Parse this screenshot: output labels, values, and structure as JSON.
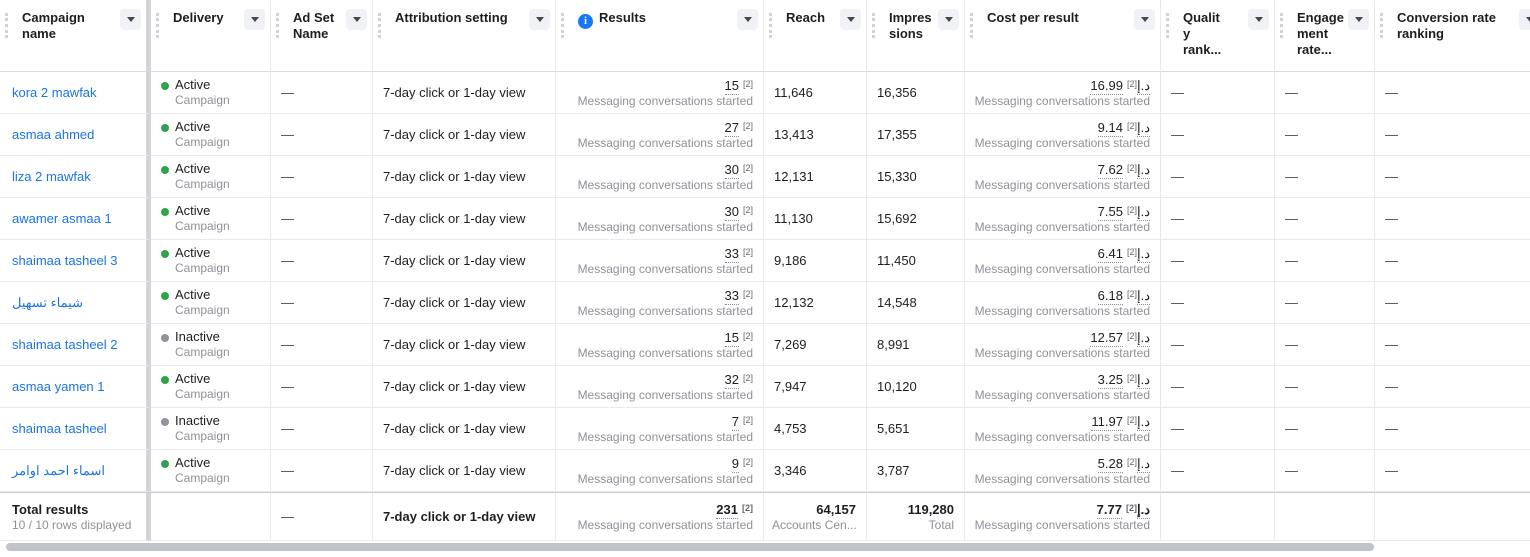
{
  "columns": [
    {
      "id": "campaign",
      "label": "Campaign name",
      "sortable": true
    },
    {
      "id": "delivery",
      "label": "Delivery",
      "sortable": true
    },
    {
      "id": "adset",
      "label": "Ad Set Name",
      "sortable": true
    },
    {
      "id": "attribution",
      "label": "Attribution setting",
      "sortable": true
    },
    {
      "id": "results",
      "label": "Results",
      "sortable": true,
      "info_icon": true
    },
    {
      "id": "reach",
      "label": "Reach",
      "sortable": true
    },
    {
      "id": "impressions",
      "label": "Impressions",
      "sortable": true
    },
    {
      "id": "cost",
      "label": "Cost per result",
      "sortable": true
    },
    {
      "id": "quality",
      "label": "Quality rank...",
      "sortable": true
    },
    {
      "id": "engagement",
      "label": "Engagement rate...",
      "sortable": true
    },
    {
      "id": "conversion",
      "label": "Conversion rate ranking",
      "sortable": true
    }
  ],
  "result_type_label": "Messaging conversations started",
  "currency_suffix": "د.إ",
  "footnote_marker": "[2]",
  "status_sublabel": "Campaign",
  "empty_value": "—",
  "rows": [
    {
      "campaign": "kora 2 mawfak",
      "status": "Active",
      "active": true,
      "adset": "—",
      "attribution": "7-day click or 1-day view",
      "results": "15",
      "reach": "11,646",
      "impressions": "16,356",
      "cost": "16.99",
      "quality": "—",
      "engagement": "—",
      "conversion": "—"
    },
    {
      "campaign": "asmaa ahmed",
      "status": "Active",
      "active": true,
      "adset": "—",
      "attribution": "7-day click or 1-day view",
      "results": "27",
      "reach": "13,413",
      "impressions": "17,355",
      "cost": "9.14",
      "quality": "—",
      "engagement": "—",
      "conversion": "—"
    },
    {
      "campaign": "liza 2 mawfak",
      "status": "Active",
      "active": true,
      "adset": "—",
      "attribution": "7-day click or 1-day view",
      "results": "30",
      "reach": "12,131",
      "impressions": "15,330",
      "cost": "7.62",
      "quality": "—",
      "engagement": "—",
      "conversion": "—"
    },
    {
      "campaign": "awamer asmaa 1",
      "status": "Active",
      "active": true,
      "adset": "—",
      "attribution": "7-day click or 1-day view",
      "results": "30",
      "reach": "11,130",
      "impressions": "15,692",
      "cost": "7.55",
      "quality": "—",
      "engagement": "—",
      "conversion": "—"
    },
    {
      "campaign": "shaimaa tasheel 3",
      "status": "Active",
      "active": true,
      "adset": "—",
      "attribution": "7-day click or 1-day view",
      "results": "33",
      "reach": "9,186",
      "impressions": "11,450",
      "cost": "6.41",
      "quality": "—",
      "engagement": "—",
      "conversion": "—"
    },
    {
      "campaign": "شيماء تسهيل",
      "status": "Active",
      "active": true,
      "adset": "—",
      "attribution": "7-day click or 1-day view",
      "results": "33",
      "reach": "12,132",
      "impressions": "14,548",
      "cost": "6.18",
      "quality": "—",
      "engagement": "—",
      "conversion": "—"
    },
    {
      "campaign": "shaimaa tasheel 2",
      "status": "Inactive",
      "active": false,
      "adset": "—",
      "attribution": "7-day click or 1-day view",
      "results": "15",
      "reach": "7,269",
      "impressions": "8,991",
      "cost": "12.57",
      "quality": "—",
      "engagement": "—",
      "conversion": "—"
    },
    {
      "campaign": "asmaa yamen 1",
      "status": "Active",
      "active": true,
      "adset": "—",
      "attribution": "7-day click or 1-day view",
      "results": "32",
      "reach": "7,947",
      "impressions": "10,120",
      "cost": "3.25",
      "quality": "—",
      "engagement": "—",
      "conversion": "—"
    },
    {
      "campaign": "shaimaa tasheel",
      "status": "Inactive",
      "active": false,
      "adset": "—",
      "attribution": "7-day click or 1-day view",
      "results": "7",
      "reach": "4,753",
      "impressions": "5,651",
      "cost": "11.97",
      "quality": "—",
      "engagement": "—",
      "conversion": "—"
    },
    {
      "campaign": "اسماء احمد اوامر",
      "status": "Active",
      "active": true,
      "adset": "—",
      "attribution": "7-day click or 1-day view",
      "results": "9",
      "reach": "3,346",
      "impressions": "3,787",
      "cost": "5.28",
      "quality": "—",
      "engagement": "—",
      "conversion": "—"
    }
  ],
  "total": {
    "title": "Total results",
    "subtitle": "10 / 10 rows displayed",
    "adset": "—",
    "attribution": "7-day click or 1-day view",
    "results": "231",
    "reach": "64,157",
    "reach_sub": "Accounts Cen...",
    "impressions": "119,280",
    "impressions_sub": "Total",
    "cost": "7.77"
  },
  "colors": {
    "link_blue": "#1b74e4",
    "info_blue": "#1877f2",
    "active_green": "#31a24c",
    "inactive_gray": "#90949c"
  }
}
